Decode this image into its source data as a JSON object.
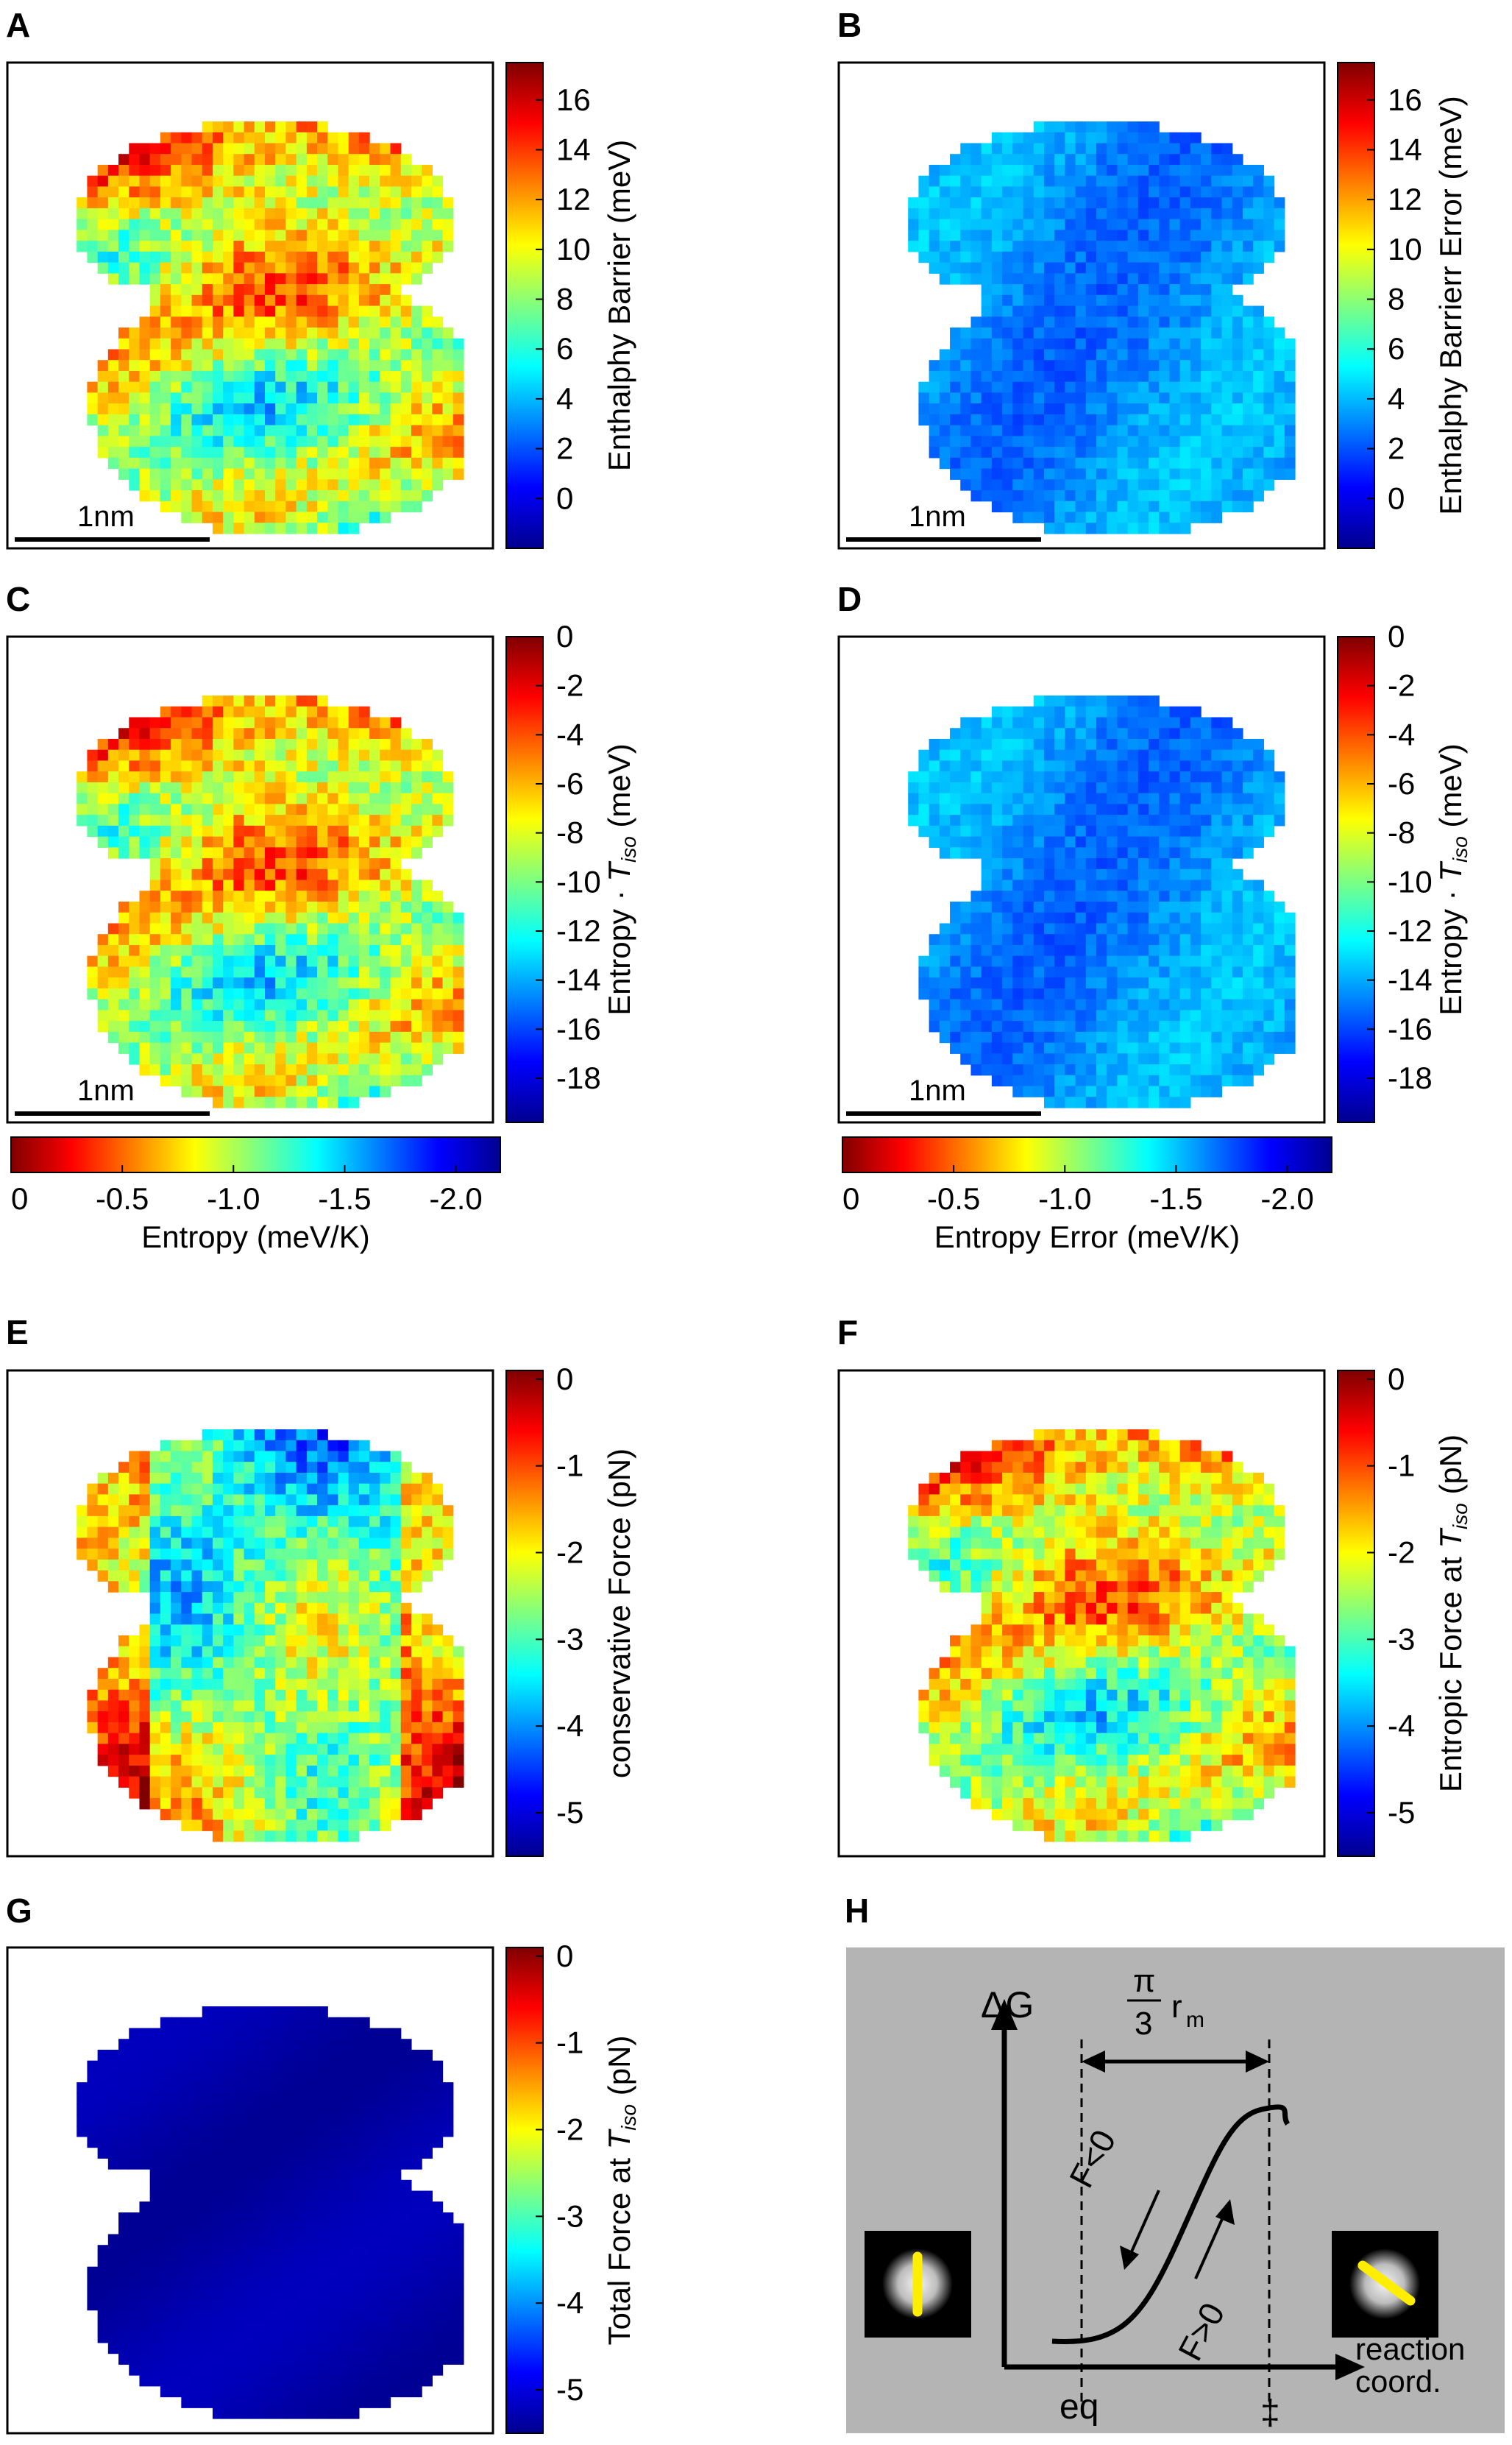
{
  "figure": {
    "panels": [
      {
        "id": "A",
        "label": "A",
        "kind": "map",
        "colorbar": {
          "side": "right",
          "label": "Enthalphy Barrier (meV)",
          "ticks": [
            "16",
            "14",
            "12",
            "10",
            "8",
            "6",
            "4",
            "2",
            "0"
          ],
          "range": [
            -2,
            17.5
          ],
          "tick_values": [
            16,
            14,
            12,
            10,
            8,
            6,
            4,
            2,
            0
          ]
        },
        "scalebar": "1nm",
        "style": "hot"
      },
      {
        "id": "B",
        "label": "B",
        "kind": "map",
        "colorbar": {
          "side": "right",
          "label": "Enthalphy Barrierr Error (meV)",
          "ticks": [
            "16",
            "14",
            "12",
            "10",
            "8",
            "6",
            "4",
            "2",
            "0"
          ],
          "range": [
            -2,
            17.5
          ],
          "tick_values": [
            16,
            14,
            12,
            10,
            8,
            6,
            4,
            2,
            0
          ]
        },
        "scalebar": "1nm",
        "style": "cool"
      },
      {
        "id": "C",
        "label": "C",
        "kind": "map",
        "colorbar": {
          "side": "right",
          "label_main": "Entropy · ",
          "label_var": "T",
          "label_sub": "iso",
          "label_unit": " (meV)",
          "ticks": [
            "0",
            "-2",
            "-4",
            "-6",
            "-8",
            "-10",
            "-12",
            "-14",
            "-16",
            "-18"
          ],
          "range": [
            -19.8,
            0
          ],
          "tick_values": [
            0,
            -2,
            -4,
            -6,
            -8,
            -10,
            -12,
            -14,
            -16,
            -18
          ]
        },
        "hcolorbar": {
          "label": "Entropy (meV/K)",
          "ticks": [
            "0",
            "-0.5",
            "-1.0",
            "-1.5",
            "-2.0"
          ],
          "tick_values": [
            0,
            -0.5,
            -1.0,
            -1.5,
            -2.0
          ],
          "range": [
            0,
            -2.2
          ]
        },
        "scalebar": "1nm",
        "style": "hot"
      },
      {
        "id": "D",
        "label": "D",
        "kind": "map",
        "colorbar": {
          "side": "right",
          "label_main": "Entropy · ",
          "label_var": "T",
          "label_sub": "iso",
          "label_unit": " (meV)",
          "ticks": [
            "0",
            "-2",
            "-4",
            "-6",
            "-8",
            "-10",
            "-12",
            "-14",
            "-16",
            "-18"
          ],
          "range": [
            -19.8,
            0
          ],
          "tick_values": [
            0,
            -2,
            -4,
            -6,
            -8,
            -10,
            -12,
            -14,
            -16,
            -18
          ]
        },
        "hcolorbar": {
          "label": "Entropy Error (meV/K)",
          "ticks": [
            "0",
            "-0.5",
            "-1.0",
            "-1.5",
            "-2.0"
          ],
          "tick_values": [
            0,
            -0.5,
            -1.0,
            -1.5,
            -2.0
          ],
          "range": [
            0,
            -2.2
          ]
        },
        "scalebar": "1nm",
        "style": "cool"
      },
      {
        "id": "E",
        "label": "E",
        "kind": "map",
        "colorbar": {
          "side": "right",
          "label": "conservative Force (pN)",
          "ticks": [
            "0",
            "-1",
            "-2",
            "-3",
            "-4",
            "-5"
          ],
          "range": [
            -5.5,
            0.1
          ],
          "tick_values": [
            0,
            -1,
            -2,
            -3,
            -4,
            -5
          ]
        },
        "style": "cons"
      },
      {
        "id": "F",
        "label": "F",
        "kind": "map",
        "colorbar": {
          "side": "right",
          "label_main": "Entropic Force at ",
          "label_var": "T",
          "label_sub": "iso",
          "label_unit": " (pN)",
          "ticks": [
            "0",
            "-1",
            "-2",
            "-3",
            "-4",
            "-5"
          ],
          "range": [
            -5.5,
            0.1
          ],
          "tick_values": [
            0,
            -1,
            -2,
            -3,
            -4,
            -5
          ]
        },
        "style": "hot"
      },
      {
        "id": "G",
        "label": "G",
        "kind": "map",
        "colorbar": {
          "side": "right",
          "label_main": "Total Force at ",
          "label_var": "T",
          "label_sub": "iso",
          "label_unit": " (pN)",
          "ticks": [
            "0",
            "-1",
            "-2",
            "-3",
            "-4",
            "-5"
          ],
          "range": [
            -5.5,
            0.1
          ],
          "tick_values": [
            0,
            -1,
            -2,
            -3,
            -4,
            -5
          ]
        },
        "style": "dark"
      },
      {
        "id": "H",
        "label": "H",
        "kind": "schematic",
        "schematic": {
          "y_axis": "ΔG",
          "x_axis_line1": "reaction",
          "x_axis_line2": "coord.",
          "eq": "eq",
          "ts": "‡",
          "width_num": "π",
          "width_den": "3",
          "width_var": "r",
          "width_sub": "m",
          "left_force": "F<0",
          "right_force": "F>0",
          "background": "#b4b4b4",
          "rod_color": "#ffee00"
        }
      }
    ],
    "colormap": "jet"
  },
  "chart_data": [
    {
      "panel": "A",
      "type": "heatmap",
      "xlabel": "",
      "ylabel": "",
      "colorbar_label": "Enthalphy Barrier (meV)",
      "colorbar_range": [
        -2,
        17.5
      ],
      "colorbar_ticks": [
        16,
        14,
        12,
        10,
        8,
        6,
        4,
        2,
        0
      ],
      "scalebar": "1nm"
    },
    {
      "panel": "B",
      "type": "heatmap",
      "xlabel": "",
      "ylabel": "",
      "colorbar_label": "Enthalphy Barrierr Error (meV)",
      "colorbar_range": [
        -2,
        17.5
      ],
      "colorbar_ticks": [
        16,
        14,
        12,
        10,
        8,
        6,
        4,
        2,
        0
      ],
      "scalebar": "1nm"
    },
    {
      "panel": "C",
      "type": "heatmap",
      "xlabel": "",
      "ylabel": "",
      "colorbar_label": "Entropy · Tiso (meV)",
      "colorbar_range": [
        -19.8,
        0
      ],
      "colorbar_ticks": [
        0,
        -2,
        -4,
        -6,
        -8,
        -10,
        -12,
        -14,
        -16,
        -18
      ],
      "secondary_colorbar_label": "Entropy (meV/K)",
      "secondary_colorbar_ticks": [
        0,
        -0.5,
        -1.0,
        -1.5,
        -2.0
      ],
      "scalebar": "1nm"
    },
    {
      "panel": "D",
      "type": "heatmap",
      "xlabel": "",
      "ylabel": "",
      "colorbar_label": "Entropy · Tiso (meV)",
      "colorbar_range": [
        -19.8,
        0
      ],
      "colorbar_ticks": [
        0,
        -2,
        -4,
        -6,
        -8,
        -10,
        -12,
        -14,
        -16,
        -18
      ],
      "secondary_colorbar_label": "Entropy Error (meV/K)",
      "secondary_colorbar_ticks": [
        0,
        -0.5,
        -1.0,
        -1.5,
        -2.0
      ],
      "scalebar": "1nm"
    },
    {
      "panel": "E",
      "type": "heatmap",
      "xlabel": "",
      "ylabel": "",
      "colorbar_label": "conservative Force (pN)",
      "colorbar_range": [
        -5.5,
        0.1
      ],
      "colorbar_ticks": [
        0,
        -1,
        -2,
        -3,
        -4,
        -5
      ]
    },
    {
      "panel": "F",
      "type": "heatmap",
      "xlabel": "",
      "ylabel": "",
      "colorbar_label": "Entropic Force at Tiso (pN)",
      "colorbar_range": [
        -5.5,
        0.1
      ],
      "colorbar_ticks": [
        0,
        -1,
        -2,
        -3,
        -4,
        -5
      ]
    },
    {
      "panel": "G",
      "type": "heatmap",
      "xlabel": "",
      "ylabel": "",
      "colorbar_label": "Total Force at Tiso (pN)",
      "colorbar_range": [
        -5.5,
        0.1
      ],
      "colorbar_ticks": [
        0,
        -1,
        -2,
        -3,
        -4,
        -5
      ]
    }
  ]
}
